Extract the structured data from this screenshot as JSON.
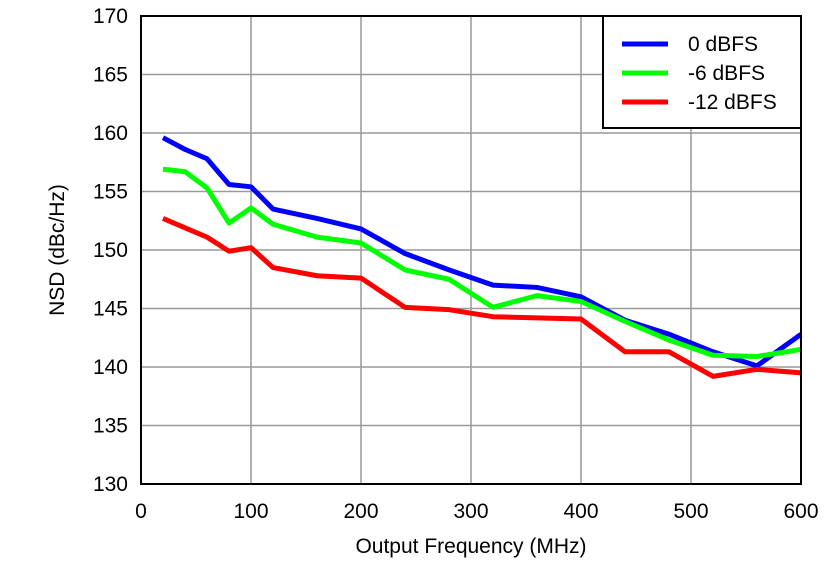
{
  "chart_data": {
    "type": "line",
    "title": "",
    "xlabel": "Output Frequency (MHz)",
    "ylabel": "NSD (dBc/Hz)",
    "xlim": [
      0,
      600
    ],
    "ylim": [
      130,
      170
    ],
    "xticks": [
      0,
      100,
      200,
      300,
      400,
      500,
      600
    ],
    "yticks": [
      130,
      135,
      140,
      145,
      150,
      155,
      160,
      165,
      170
    ],
    "grid": true,
    "legend_position": "top-right",
    "x": [
      20,
      40,
      60,
      80,
      100,
      120,
      160,
      200,
      240,
      280,
      320,
      360,
      400,
      440,
      480,
      520,
      560,
      600
    ],
    "series": [
      {
        "name": "0 dBFS",
        "color": "#0000ff",
        "values": [
          159.6,
          158.6,
          157.8,
          155.6,
          155.4,
          153.5,
          152.7,
          151.8,
          149.7,
          148.3,
          147.0,
          146.8,
          146.0,
          144.0,
          142.8,
          141.3,
          140.1,
          142.8
        ]
      },
      {
        "name": "-6 dBFS",
        "color": "#00ff00",
        "values": [
          156.9,
          156.7,
          155.3,
          152.3,
          153.6,
          152.2,
          151.1,
          150.6,
          148.3,
          147.5,
          145.1,
          146.1,
          145.6,
          143.9,
          142.3,
          141.0,
          140.9,
          141.5
        ]
      },
      {
        "name": "-12 dBFS",
        "color": "#ff0000",
        "values": [
          152.7,
          151.9,
          151.1,
          149.9,
          150.2,
          148.5,
          147.8,
          147.6,
          145.1,
          144.9,
          144.3,
          144.2,
          144.1,
          141.3,
          141.3,
          139.2,
          139.8,
          139.5
        ]
      }
    ]
  }
}
